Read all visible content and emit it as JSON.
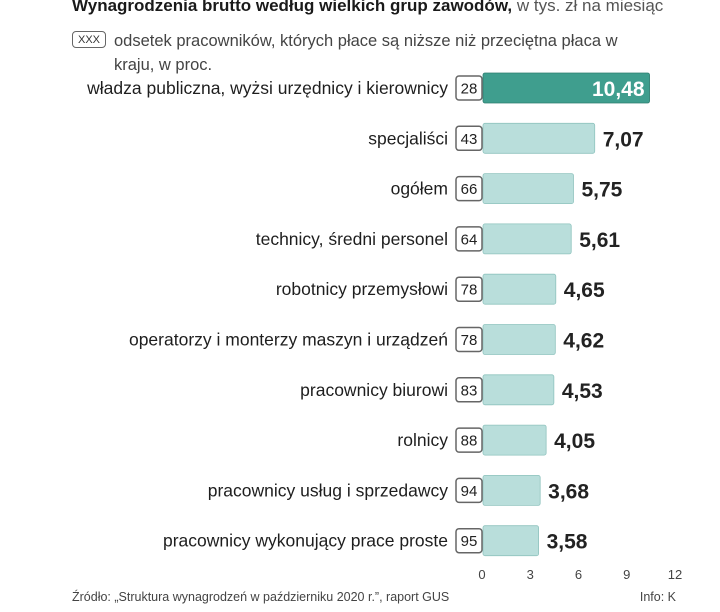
{
  "header": {
    "title_bold": "Wynagrodzenia brutto według wielkich grup zawodów,",
    "title_light": " w tys. zł na miesiąc",
    "legend_box_label": "XXX",
    "legend_text": "odsetek pracowników, których płace są niższe niż przeciętna płaca w kraju, w proc."
  },
  "footer": {
    "source": "Źródło: „Struktura wynagrodzeń w październiku 2020 r.”, raport GUS",
    "credit": "Info: K"
  },
  "colors": {
    "highlight_bar": "#3f9e8e",
    "bar": "#b9dedb",
    "bar_border": "#ffffff",
    "box_border": "#666666"
  },
  "chart_data": {
    "type": "bar",
    "orientation": "horizontal",
    "title": "Wynagrodzenia brutto według wielkich grup zawodów, w tys. zł na miesiąc",
    "xlabel": "",
    "ylabel": "",
    "xlim": [
      0,
      12
    ],
    "xticks": [
      0,
      3,
      6,
      9,
      12
    ],
    "categories": [
      "władza publiczna, wyżsi urzędnicy i kierownicy",
      "specjaliści",
      "ogółem",
      "technicy, średni personel",
      "robotnicy przemysłowi",
      "operatorzy i monterzy maszyn i urządzeń",
      "pracownicy biurowi",
      "rolnicy",
      "pracownicy usług i sprzedawcy",
      "pracownicy wykonujący prace proste"
    ],
    "series": [
      {
        "name": "Wynagrodzenie brutto (tys. zł)",
        "values": [
          10.48,
          7.07,
          5.75,
          5.61,
          4.65,
          4.62,
          4.53,
          4.05,
          3.68,
          3.58
        ],
        "labels": [
          "10,48",
          "7,07",
          "5,75",
          "5,61",
          "4,65",
          "4,62",
          "4,53",
          "4,05",
          "3,68",
          "3,58"
        ]
      },
      {
        "name": "odsetek pracowników z płacą poniżej przeciętnej (proc.)",
        "values": [
          28,
          43,
          66,
          64,
          78,
          78,
          83,
          88,
          94,
          95
        ],
        "labels": [
          "28",
          "43",
          "66",
          "64",
          "78",
          "78",
          "83",
          "88",
          "94",
          "95"
        ]
      }
    ],
    "highlighted_category": "władza publiczna, wyżsi urzędnicy i kierownicy"
  }
}
